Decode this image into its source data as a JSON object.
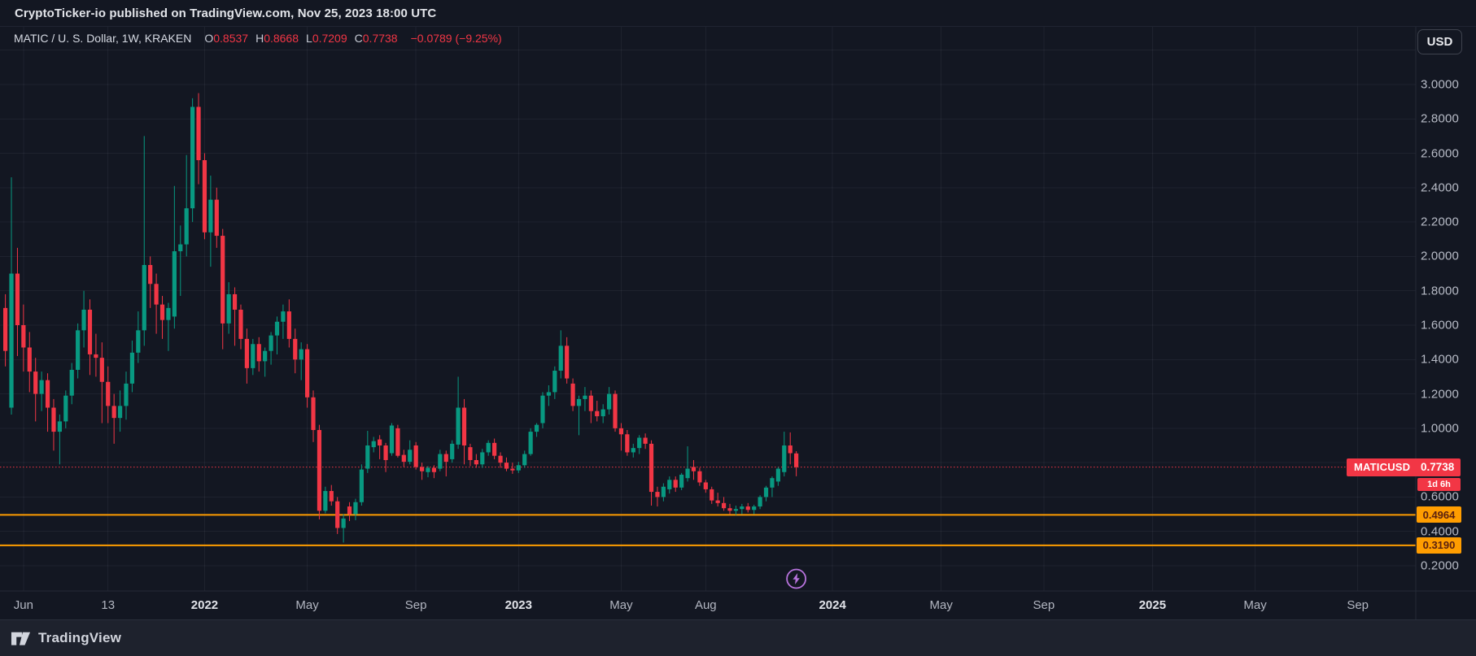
{
  "top_bar": {
    "published_text": "CryptoTicker-io published on TradingView.com, Nov 25, 2023 18:00 UTC"
  },
  "legend": {
    "symbol_title": "MATIC / U. S. Dollar, 1W, KRAKEN",
    "ohlc": [
      {
        "k": "O",
        "v": "0.8537"
      },
      {
        "k": "H",
        "v": "0.8668"
      },
      {
        "k": "L",
        "v": "0.7209"
      },
      {
        "k": "C",
        "v": "0.7738"
      }
    ],
    "change_text": "−0.0789 (−9.25%)"
  },
  "toolbar": {
    "currency_button": "USD"
  },
  "price_axis": {
    "tick_labels": [
      {
        "price": 3.0,
        "label": "3.0000"
      },
      {
        "price": 2.8,
        "label": "2.8000"
      },
      {
        "price": 2.6,
        "label": "2.6000"
      },
      {
        "price": 2.4,
        "label": "2.4000"
      },
      {
        "price": 2.2,
        "label": "2.2000"
      },
      {
        "price": 2.0,
        "label": "2.0000"
      },
      {
        "price": 1.8,
        "label": "1.8000"
      },
      {
        "price": 1.6,
        "label": "1.6000"
      },
      {
        "price": 1.4,
        "label": "1.4000"
      },
      {
        "price": 1.2,
        "label": "1.2000"
      },
      {
        "price": 1.0,
        "label": "1.0000"
      },
      {
        "price": 0.6,
        "label": "0.6000"
      },
      {
        "price": 0.4,
        "label": "0.4000"
      },
      {
        "price": 0.2,
        "label": "0.2000"
      }
    ]
  },
  "time_axis": {
    "labels": [
      {
        "label": "Jun",
        "week": 3,
        "bold": false
      },
      {
        "label": "13",
        "week": 17,
        "bold": false
      },
      {
        "label": "2022",
        "week": 33,
        "bold": true
      },
      {
        "label": "May",
        "week": 50,
        "bold": false
      },
      {
        "label": "Sep",
        "week": 68,
        "bold": false
      },
      {
        "label": "2023",
        "week": 85,
        "bold": true
      },
      {
        "label": "May",
        "week": 102,
        "bold": false
      },
      {
        "label": "Aug",
        "week": 116,
        "bold": false
      },
      {
        "label": "2024",
        "week": 137,
        "bold": true
      },
      {
        "label": "May",
        "week": 155,
        "bold": false
      },
      {
        "label": "Sep",
        "week": 172,
        "bold": false
      },
      {
        "label": "2025",
        "week": 190,
        "bold": true
      },
      {
        "label": "May",
        "week": 207,
        "bold": false
      },
      {
        "label": "Sep",
        "week": 224,
        "bold": false
      }
    ]
  },
  "overlays": {
    "current_price": {
      "ticker": "MATICUSD",
      "price_label": "0.7738",
      "value": 0.7738,
      "countdown": "1d 6h",
      "color": "#f23645"
    },
    "horizontal_lines": [
      {
        "value": 0.4964,
        "label": "0.4964",
        "color": "#ff9d00"
      },
      {
        "value": 0.319,
        "label": "0.3190",
        "color": "#ff9d00"
      }
    ],
    "marker": {
      "type": "lightning",
      "week": 131,
      "color": "#b873dd"
    }
  },
  "footer": {
    "brand": "TradingView"
  },
  "chart_data": {
    "type": "candlestick",
    "title": "MATIC / U. S. Dollar, 1W, KRAKEN",
    "symbol": "MATICUSD",
    "exchange": "KRAKEN",
    "interval": "1W",
    "legend_position": "top-left",
    "grid": true,
    "y_axis": {
      "min": 0.05,
      "max": 3.33,
      "tick_step": 0.2
    },
    "x_axis": {
      "first_bar": "2021-05-17",
      "last_bar": "2023-11-20",
      "bar_interval_days": 7
    },
    "up_color": "#089981",
    "down_color": "#f23645",
    "candles": [
      [
        1.7,
        1.78,
        1.36,
        1.45
      ],
      [
        1.12,
        2.46,
        1.08,
        1.9
      ],
      [
        1.9,
        2.05,
        1.42,
        1.6
      ],
      [
        1.6,
        1.72,
        1.33,
        1.47
      ],
      [
        1.47,
        1.56,
        1.21,
        1.33
      ],
      [
        1.33,
        1.41,
        1.04,
        1.2
      ],
      [
        1.2,
        1.33,
        1.1,
        1.28
      ],
      [
        1.28,
        1.32,
        0.98,
        1.12
      ],
      [
        1.12,
        1.17,
        0.87,
        0.98
      ],
      [
        0.98,
        1.08,
        0.79,
        1.04
      ],
      [
        1.04,
        1.22,
        1.0,
        1.19
      ],
      [
        1.19,
        1.38,
        1.14,
        1.34
      ],
      [
        1.34,
        1.61,
        1.29,
        1.57
      ],
      [
        1.57,
        1.8,
        1.47,
        1.69
      ],
      [
        1.69,
        1.75,
        1.31,
        1.43
      ],
      [
        1.43,
        1.55,
        1.3,
        1.41
      ],
      [
        1.41,
        1.5,
        1.03,
        1.27
      ],
      [
        1.27,
        1.36,
        1.03,
        1.13
      ],
      [
        1.13,
        1.2,
        0.91,
        1.06
      ],
      [
        1.06,
        1.22,
        0.98,
        1.13
      ],
      [
        1.13,
        1.33,
        1.05,
        1.26
      ],
      [
        1.26,
        1.51,
        1.21,
        1.44
      ],
      [
        1.44,
        1.68,
        1.38,
        1.57
      ],
      [
        1.57,
        2.7,
        1.48,
        1.95
      ],
      [
        1.95,
        2.0,
        1.7,
        1.84
      ],
      [
        1.84,
        1.9,
        1.55,
        1.72
      ],
      [
        1.72,
        1.77,
        1.52,
        1.63
      ],
      [
        1.63,
        1.73,
        1.45,
        1.7
      ],
      [
        1.65,
        2.41,
        1.58,
        2.03
      ],
      [
        2.03,
        2.18,
        1.77,
        2.07
      ],
      [
        2.07,
        2.59,
        2.0,
        2.28
      ],
      [
        2.28,
        2.92,
        2.2,
        2.87
      ],
      [
        2.87,
        2.95,
        2.42,
        2.56
      ],
      [
        2.56,
        2.6,
        2.1,
        2.14
      ],
      [
        2.14,
        2.47,
        1.94,
        2.33
      ],
      [
        2.33,
        2.4,
        2.05,
        2.12
      ],
      [
        2.12,
        2.16,
        1.46,
        1.61
      ],
      [
        1.61,
        1.85,
        1.55,
        1.78
      ],
      [
        1.78,
        1.82,
        1.48,
        1.69
      ],
      [
        1.69,
        1.72,
        1.46,
        1.52
      ],
      [
        1.52,
        1.58,
        1.26,
        1.35
      ],
      [
        1.35,
        1.52,
        1.31,
        1.49
      ],
      [
        1.49,
        1.53,
        1.33,
        1.39
      ],
      [
        1.39,
        1.47,
        1.3,
        1.45
      ],
      [
        1.45,
        1.56,
        1.37,
        1.54
      ],
      [
        1.54,
        1.65,
        1.43,
        1.62
      ],
      [
        1.62,
        1.72,
        1.52,
        1.68
      ],
      [
        1.68,
        1.75,
        1.47,
        1.52
      ],
      [
        1.52,
        1.58,
        1.32,
        1.4
      ],
      [
        1.4,
        1.5,
        1.28,
        1.46
      ],
      [
        1.46,
        1.49,
        1.12,
        1.18
      ],
      [
        1.18,
        1.22,
        0.92,
        0.99
      ],
      [
        0.99,
        1.02,
        0.47,
        0.52
      ],
      [
        0.52,
        0.66,
        0.505,
        0.635
      ],
      [
        0.635,
        0.67,
        0.55,
        0.575
      ],
      [
        0.575,
        0.6,
        0.385,
        0.42
      ],
      [
        0.42,
        0.5,
        0.335,
        0.475
      ],
      [
        0.545,
        0.57,
        0.46,
        0.5
      ],
      [
        0.5,
        0.59,
        0.465,
        0.57
      ],
      [
        0.57,
        0.79,
        0.55,
        0.76
      ],
      [
        0.765,
        0.985,
        0.74,
        0.9
      ],
      [
        0.89,
        0.95,
        0.86,
        0.925
      ],
      [
        0.935,
        0.96,
        0.82,
        0.9
      ],
      [
        0.9,
        0.915,
        0.745,
        0.815
      ],
      [
        0.855,
        1.03,
        0.84,
        1.016
      ],
      [
        1.0,
        1.02,
        0.83,
        0.84
      ],
      [
        0.845,
        0.875,
        0.775,
        0.805
      ],
      [
        0.805,
        0.93,
        0.79,
        0.875
      ],
      [
        0.9,
        0.92,
        0.76,
        0.775
      ],
      [
        0.775,
        0.8,
        0.7,
        0.75
      ],
      [
        0.745,
        0.78,
        0.715,
        0.77
      ],
      [
        0.77,
        0.785,
        0.71,
        0.745
      ],
      [
        0.765,
        0.875,
        0.75,
        0.85
      ],
      [
        0.85,
        0.87,
        0.72,
        0.805
      ],
      [
        0.82,
        0.93,
        0.8,
        0.91
      ],
      [
        0.905,
        1.3,
        0.88,
        1.12
      ],
      [
        1.12,
        1.17,
        0.79,
        0.9
      ],
      [
        0.89,
        0.91,
        0.78,
        0.815
      ],
      [
        0.815,
        0.85,
        0.77,
        0.79
      ],
      [
        0.79,
        0.88,
        0.77,
        0.86
      ],
      [
        0.86,
        0.93,
        0.84,
        0.915
      ],
      [
        0.915,
        0.94,
        0.82,
        0.84
      ],
      [
        0.84,
        0.86,
        0.77,
        0.8
      ],
      [
        0.8,
        0.83,
        0.75,
        0.765
      ],
      [
        0.765,
        0.8,
        0.735,
        0.755
      ],
      [
        0.755,
        0.805,
        0.74,
        0.785
      ],
      [
        0.785,
        0.87,
        0.77,
        0.85
      ],
      [
        0.85,
        1.0,
        0.84,
        0.98
      ],
      [
        0.98,
        1.03,
        0.95,
        1.02
      ],
      [
        1.03,
        1.21,
        1.0,
        1.19
      ],
      [
        1.19,
        1.25,
        1.13,
        1.21
      ],
      [
        1.21,
        1.36,
        1.17,
        1.335
      ],
      [
        1.335,
        1.57,
        1.29,
        1.48
      ],
      [
        1.48,
        1.53,
        1.26,
        1.29
      ],
      [
        1.26,
        1.29,
        1.1,
        1.13
      ],
      [
        1.13,
        1.19,
        0.96,
        1.17
      ],
      [
        1.17,
        1.24,
        1.1,
        1.19
      ],
      [
        1.19,
        1.22,
        1.03,
        1.1
      ],
      [
        1.1,
        1.16,
        1.04,
        1.07
      ],
      [
        1.07,
        1.14,
        1.03,
        1.11
      ],
      [
        1.11,
        1.24,
        1.08,
        1.2
      ],
      [
        1.2,
        1.22,
        0.98,
        1.0
      ],
      [
        1.0,
        1.03,
        0.87,
        0.965
      ],
      [
        0.965,
        0.99,
        0.84,
        0.86
      ],
      [
        0.86,
        0.91,
        0.83,
        0.885
      ],
      [
        0.885,
        0.96,
        0.85,
        0.945
      ],
      [
        0.945,
        0.97,
        0.88,
        0.91
      ],
      [
        0.91,
        0.93,
        0.55,
        0.63
      ],
      [
        0.63,
        0.66,
        0.545,
        0.6
      ],
      [
        0.6,
        0.68,
        0.575,
        0.66
      ],
      [
        0.645,
        0.72,
        0.62,
        0.7
      ],
      [
        0.7,
        0.72,
        0.63,
        0.655
      ],
      [
        0.655,
        0.74,
        0.64,
        0.73
      ],
      [
        0.71,
        0.895,
        0.69,
        0.765
      ],
      [
        0.775,
        0.815,
        0.7,
        0.75
      ],
      [
        0.75,
        0.77,
        0.665,
        0.685
      ],
      [
        0.685,
        0.7,
        0.625,
        0.645
      ],
      [
        0.645,
        0.66,
        0.56,
        0.58
      ],
      [
        0.58,
        0.625,
        0.545,
        0.565
      ],
      [
        0.565,
        0.6,
        0.52,
        0.535
      ],
      [
        0.535,
        0.56,
        0.5,
        0.52
      ],
      [
        0.52,
        0.55,
        0.495,
        0.53
      ],
      [
        0.53,
        0.56,
        0.5,
        0.545
      ],
      [
        0.545,
        0.565,
        0.51,
        0.525
      ],
      [
        0.525,
        0.555,
        0.5,
        0.545
      ],
      [
        0.545,
        0.61,
        0.53,
        0.6
      ],
      [
        0.6,
        0.665,
        0.575,
        0.655
      ],
      [
        0.655,
        0.72,
        0.6,
        0.71
      ],
      [
        0.69,
        0.775,
        0.665,
        0.765
      ],
      [
        0.745,
        0.98,
        0.72,
        0.9
      ],
      [
        0.9,
        0.976,
        0.79,
        0.855
      ],
      [
        0.8537,
        0.8668,
        0.7209,
        0.7738
      ]
    ]
  }
}
